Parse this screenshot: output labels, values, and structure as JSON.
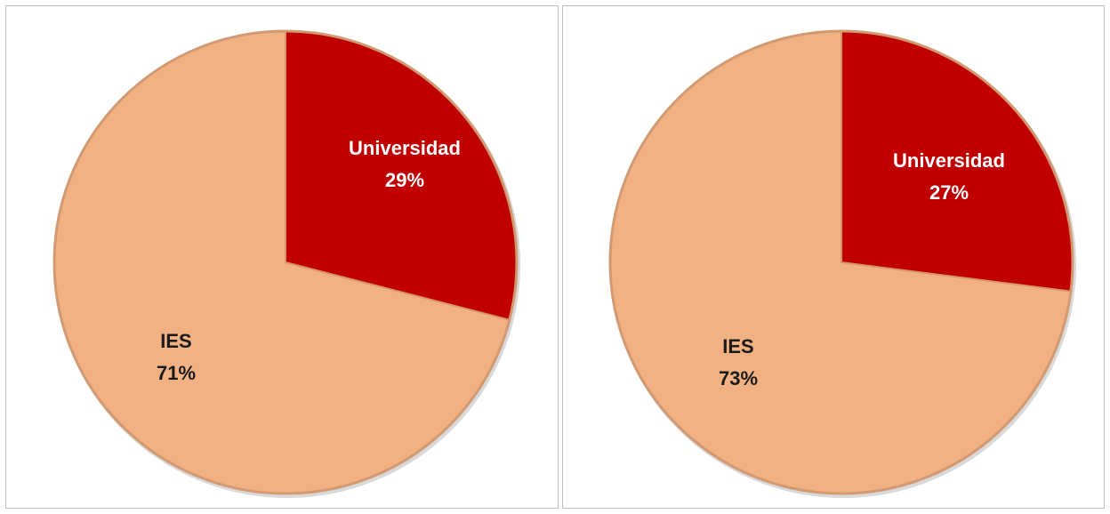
{
  "chart_data": [
    {
      "type": "pie",
      "title": "",
      "slices": [
        {
          "label": "Universidad",
          "value": 29,
          "value_label": "29%",
          "color": "#c00000",
          "text_color": "#ffffff"
        },
        {
          "label": "IES",
          "value": 71,
          "value_label": "71%",
          "color": "#f2b183",
          "text_color": "#1a1a1a"
        }
      ],
      "start_angle": "12 o'clock",
      "direction": "clockwise",
      "legend": "none",
      "data_labels": "inside"
    },
    {
      "type": "pie",
      "title": "",
      "slices": [
        {
          "label": "Universidad",
          "value": 27,
          "value_label": "27%",
          "color": "#c00000",
          "text_color": "#ffffff"
        },
        {
          "label": "IES",
          "value": 73,
          "value_label": "73%",
          "color": "#f2b183",
          "text_color": "#1a1a1a"
        }
      ],
      "start_angle": "12 o'clock",
      "direction": "clockwise",
      "legend": "none",
      "data_labels": "inside"
    }
  ]
}
